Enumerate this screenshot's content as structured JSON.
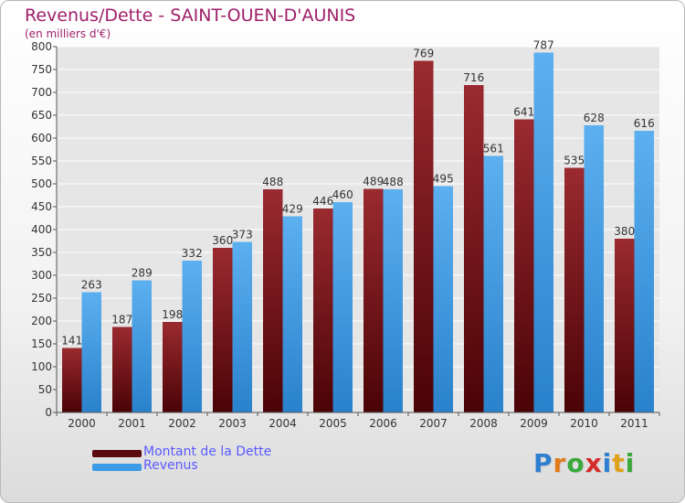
{
  "header": {
    "title": "Revenus/Dette - SAINT-OUEN-D'AUNIS",
    "subtitle": "(en milliers d'€)"
  },
  "legend": {
    "items": [
      {
        "label": "Montant de la Dette",
        "color": "#7a0f14"
      },
      {
        "label": "Revenus",
        "color": "#3d9be6"
      }
    ]
  },
  "logo": {
    "text": "Proxiti",
    "letter_colors": [
      "#2f7fd0",
      "#e07a1a",
      "#3aa83a",
      "#d62b2b",
      "#2f7fd0",
      "#e0a01a",
      "#3aa83a"
    ]
  },
  "chart_data": {
    "type": "bar",
    "title": "Revenus/Dette - SAINT-OUEN-D'AUNIS",
    "subtitle": "(en milliers d'€)",
    "categories": [
      "2000",
      "2001",
      "2002",
      "2003",
      "2004",
      "2005",
      "2006",
      "2007",
      "2008",
      "2009",
      "2010",
      "2011"
    ],
    "series": [
      {
        "name": "Montant de la Dette",
        "color": "#7a0f14",
        "values": [
          141,
          187,
          198,
          360,
          488,
          446,
          489,
          769,
          716,
          641,
          535,
          380
        ]
      },
      {
        "name": "Revenus",
        "color": "#3d9be6",
        "values": [
          263,
          289,
          332,
          373,
          429,
          460,
          488,
          495,
          561,
          787,
          628,
          616
        ]
      }
    ],
    "ylim": [
      0,
      800
    ],
    "yticks": [
      0,
      50,
      100,
      150,
      200,
      250,
      300,
      350,
      400,
      450,
      500,
      550,
      600,
      650,
      700,
      750,
      800
    ],
    "grid": true,
    "legend_position": "bottom-left"
  }
}
